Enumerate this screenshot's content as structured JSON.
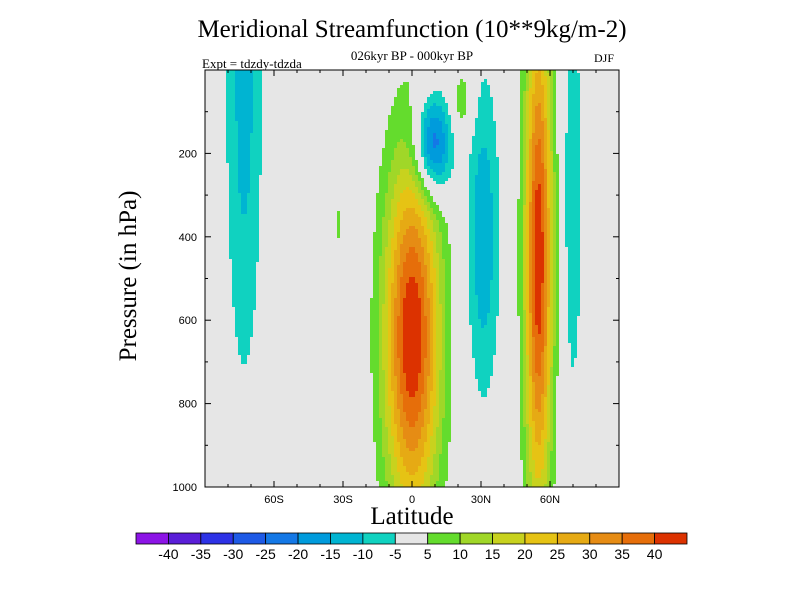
{
  "chart_data": {
    "type": "heatmap",
    "title": "Meridional Streamfunction (10**9kg/m-2)",
    "subtitle": "026kyr BP - 000kyr BP",
    "left_label": "Expt = tdzdy-tdzda",
    "right_label": "DJF",
    "xlabel": "Latitude",
    "ylabel": "Pressure (in hPa)",
    "xlim": [
      -90,
      90
    ],
    "ylim": [
      1000,
      0
    ],
    "x_ticks": [
      {
        "value": -60,
        "label": "60S"
      },
      {
        "value": -30,
        "label": "30S"
      },
      {
        "value": 0,
        "label": "0"
      },
      {
        "value": 30,
        "label": "30N"
      },
      {
        "value": 60,
        "label": "60N"
      }
    ],
    "y_ticks": [
      {
        "value": 200,
        "label": "200"
      },
      {
        "value": 400,
        "label": "400"
      },
      {
        "value": 600,
        "label": "600"
      },
      {
        "value": 800,
        "label": "800"
      },
      {
        "value": 1000,
        "label": "1000"
      }
    ],
    "colorbar": {
      "bins": [
        {
          "lo": -45,
          "hi": -40,
          "color": "#8c14e6"
        },
        {
          "lo": -40,
          "hi": -35,
          "color": "#5a1ed8"
        },
        {
          "lo": -35,
          "hi": -30,
          "color": "#2d32e6"
        },
        {
          "lo": -30,
          "hi": -25,
          "color": "#1e5ae6"
        },
        {
          "lo": -25,
          "hi": -20,
          "color": "#1478e6"
        },
        {
          "lo": -20,
          "hi": -15,
          "color": "#009bdc"
        },
        {
          "lo": -15,
          "hi": -10,
          "color": "#00b4d2"
        },
        {
          "lo": -10,
          "hi": -5,
          "color": "#10d2c0"
        },
        {
          "lo": -5,
          "hi": 5,
          "color": "#e6e6e6"
        },
        {
          "lo": 5,
          "hi": 10,
          "color": "#64dc2d"
        },
        {
          "lo": 10,
          "hi": 15,
          "color": "#a0d728"
        },
        {
          "lo": 15,
          "hi": 20,
          "color": "#c8d21e"
        },
        {
          "lo": 20,
          "hi": 25,
          "color": "#e6c314"
        },
        {
          "lo": 25,
          "hi": 30,
          "color": "#e6aa14"
        },
        {
          "lo": 30,
          "hi": 35,
          "color": "#e68c14"
        },
        {
          "lo": 35,
          "hi": 40,
          "color": "#e66e0a"
        },
        {
          "lo": 40,
          "hi": 45,
          "color": "#dc3200"
        }
      ],
      "tick_labels": [
        "-40",
        "-35",
        "-30",
        "-25",
        "-20",
        "-15",
        "-10",
        "-5",
        "5",
        "10",
        "15",
        "20",
        "25",
        "30",
        "35",
        "40"
      ]
    },
    "features": [
      {
        "name": "southern-polar-cell",
        "lat": -73,
        "p": 50,
        "lat_halfwidth": 8,
        "p_halfdepth": 700,
        "value": -12
      },
      {
        "name": "tropical-positive-cell",
        "lat": 0,
        "p": 640,
        "lat_halfwidth": 12,
        "p_halfdepth": 430,
        "value": 45
      },
      {
        "name": "tropical-upper-negative-cell",
        "lat": 9,
        "p": 180,
        "lat_halfwidth": 8,
        "p_halfdepth": 120,
        "value": -28
      },
      {
        "name": "northern-subtropical-negative-cell",
        "lat": 31,
        "p": 400,
        "lat_halfwidth": 7,
        "p_halfdepth": 380,
        "value": -14
      },
      {
        "name": "northern-midlatitude-positive-cell",
        "lat": 55,
        "p": 450,
        "lat_halfwidth": 6,
        "p_halfdepth": 600,
        "value": 44
      },
      {
        "name": "northern-high-latitude-negative-cell",
        "lat": 70,
        "p": 300,
        "lat_halfwidth": 4,
        "p_halfdepth": 500,
        "value": -10
      },
      {
        "name": "upper-positive-patch",
        "lat": 22,
        "p": 80,
        "lat_halfwidth": 5,
        "p_halfdepth": 90,
        "value": 9
      },
      {
        "name": "southern-small-positive-patch",
        "lat": -32,
        "p": 370,
        "lat_halfwidth": 1.5,
        "p_halfdepth": 50,
        "value": 8
      }
    ]
  }
}
